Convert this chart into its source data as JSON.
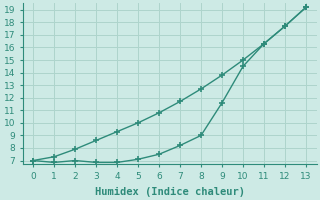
{
  "line1_x": [
    0,
    1,
    2,
    3,
    4,
    5,
    6,
    7,
    8,
    9,
    10,
    11,
    12,
    13
  ],
  "line1_y": [
    7.0,
    7.3,
    7.9,
    8.6,
    9.3,
    10.0,
    10.8,
    11.7,
    12.7,
    13.8,
    15.0,
    16.3,
    17.7,
    19.2
  ],
  "line2_x": [
    0,
    1,
    2,
    3,
    4,
    5,
    6,
    7,
    8,
    9,
    10,
    11,
    12,
    13
  ],
  "line2_y": [
    7.0,
    6.85,
    7.0,
    6.85,
    6.85,
    7.1,
    7.5,
    8.2,
    9.0,
    11.6,
    14.5,
    16.3,
    17.7,
    19.2
  ],
  "line_color": "#2e8b7a",
  "bg_color": "#cdeae5",
  "grid_color": "#aed4cc",
  "xlabel": "Humidex (Indice chaleur)",
  "xlim": [
    -0.5,
    13.5
  ],
  "ylim": [
    6.7,
    19.5
  ],
  "yticks": [
    7,
    8,
    9,
    10,
    11,
    12,
    13,
    14,
    15,
    16,
    17,
    18,
    19
  ],
  "xticks": [
    0,
    1,
    2,
    3,
    4,
    5,
    6,
    7,
    8,
    9,
    10,
    11,
    12,
    13
  ],
  "marker": "+",
  "markersize": 4,
  "linewidth": 1.0,
  "xlabel_fontsize": 7.5,
  "tick_fontsize": 6.5
}
